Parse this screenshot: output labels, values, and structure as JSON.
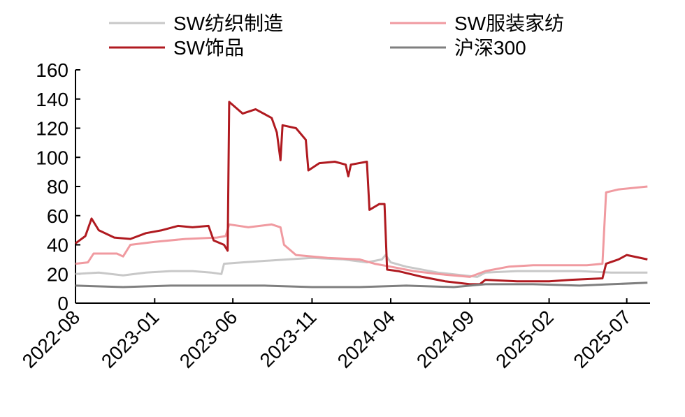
{
  "chart_data": {
    "type": "line",
    "title": "",
    "xlabel": "",
    "ylabel": "",
    "xlim": [
      "2022-08-01",
      "2025-08-15"
    ],
    "ylim": [
      0,
      160
    ],
    "yticks": [
      0,
      20,
      40,
      60,
      80,
      100,
      120,
      140,
      160
    ],
    "xticks": [
      "2022-08",
      "2023-01",
      "2023-06",
      "2023-11",
      "2024-04",
      "2024-09",
      "2025-02",
      "2025-07"
    ],
    "grid": false,
    "legend_position": "top",
    "series": [
      {
        "name": "SW纺织制造",
        "color": "#c8c8c8",
        "points": [
          [
            "2022-08-01",
            20
          ],
          [
            "2022-09-15",
            21
          ],
          [
            "2022-11-01",
            19
          ],
          [
            "2022-12-15",
            21
          ],
          [
            "2023-02-01",
            22
          ],
          [
            "2023-03-15",
            22
          ],
          [
            "2023-04-20",
            21
          ],
          [
            "2023-05-10",
            20
          ],
          [
            "2023-05-15",
            27
          ],
          [
            "2023-06-20",
            28
          ],
          [
            "2023-08-01",
            29
          ],
          [
            "2023-09-15",
            30
          ],
          [
            "2023-11-01",
            31
          ],
          [
            "2024-01-01",
            30
          ],
          [
            "2024-02-15",
            28
          ],
          [
            "2024-03-15",
            30
          ],
          [
            "2024-03-22",
            33
          ],
          [
            "2024-04-01",
            28
          ],
          [
            "2024-05-01",
            25
          ],
          [
            "2024-07-01",
            21
          ],
          [
            "2024-09-15",
            18
          ],
          [
            "2024-10-01",
            21
          ],
          [
            "2024-12-01",
            22
          ],
          [
            "2025-02-01",
            22
          ],
          [
            "2025-04-01",
            22
          ],
          [
            "2025-06-01",
            21
          ],
          [
            "2025-08-10",
            21
          ]
        ]
      },
      {
        "name": "SW服装家纺",
        "color": "#f09aa0",
        "points": [
          [
            "2022-08-01",
            27
          ],
          [
            "2022-08-25",
            28
          ],
          [
            "2022-09-05",
            34
          ],
          [
            "2022-10-20",
            34
          ],
          [
            "2022-11-01",
            32
          ],
          [
            "2022-11-15",
            40
          ],
          [
            "2023-01-01",
            42
          ],
          [
            "2023-03-01",
            44
          ],
          [
            "2023-05-01",
            45
          ],
          [
            "2023-05-18",
            46
          ],
          [
            "2023-05-25",
            54
          ],
          [
            "2023-07-01",
            52
          ],
          [
            "2023-08-15",
            54
          ],
          [
            "2023-09-01",
            52
          ],
          [
            "2023-09-08",
            40
          ],
          [
            "2023-10-01",
            33
          ],
          [
            "2023-12-01",
            31
          ],
          [
            "2024-02-01",
            30
          ],
          [
            "2024-03-01",
            27
          ],
          [
            "2024-04-01",
            25
          ],
          [
            "2024-05-15",
            22
          ],
          [
            "2024-07-01",
            20
          ],
          [
            "2024-09-01",
            18
          ],
          [
            "2024-10-01",
            22
          ],
          [
            "2024-11-15",
            25
          ],
          [
            "2025-01-01",
            26
          ],
          [
            "2025-04-15",
            26
          ],
          [
            "2025-05-15",
            27
          ],
          [
            "2025-05-22",
            76
          ],
          [
            "2025-06-15",
            78
          ],
          [
            "2025-08-10",
            80
          ]
        ]
      },
      {
        "name": "SW饰品",
        "color": "#b01a20",
        "points": [
          [
            "2022-08-01",
            41
          ],
          [
            "2022-08-20",
            46
          ],
          [
            "2022-09-01",
            58
          ],
          [
            "2022-09-15",
            50
          ],
          [
            "2022-10-15",
            45
          ],
          [
            "2022-11-15",
            44
          ],
          [
            "2022-12-15",
            48
          ],
          [
            "2023-01-15",
            50
          ],
          [
            "2023-02-15",
            53
          ],
          [
            "2023-03-15",
            52
          ],
          [
            "2023-04-15",
            53
          ],
          [
            "2023-04-25",
            43
          ],
          [
            "2023-05-15",
            40
          ],
          [
            "2023-05-22",
            36
          ],
          [
            "2023-05-25",
            138
          ],
          [
            "2023-06-20",
            130
          ],
          [
            "2023-07-15",
            133
          ],
          [
            "2023-08-15",
            127
          ],
          [
            "2023-08-25",
            117
          ],
          [
            "2023-09-01",
            98
          ],
          [
            "2023-09-05",
            122
          ],
          [
            "2023-10-01",
            120
          ],
          [
            "2023-10-20",
            112
          ],
          [
            "2023-10-25",
            91
          ],
          [
            "2023-11-15",
            96
          ],
          [
            "2023-12-15",
            97
          ],
          [
            "2024-01-05",
            95
          ],
          [
            "2024-01-10",
            87
          ],
          [
            "2024-01-15",
            95
          ],
          [
            "2024-02-15",
            97
          ],
          [
            "2024-02-20",
            64
          ],
          [
            "2024-03-10",
            68
          ],
          [
            "2024-03-20",
            68
          ],
          [
            "2024-03-25",
            23
          ],
          [
            "2024-04-15",
            22
          ],
          [
            "2024-06-01",
            18
          ],
          [
            "2024-07-15",
            15
          ],
          [
            "2024-09-01",
            13
          ],
          [
            "2024-09-20",
            13
          ],
          [
            "2024-10-01",
            16
          ],
          [
            "2024-12-01",
            15
          ],
          [
            "2025-02-01",
            15
          ],
          [
            "2025-03-15",
            16
          ],
          [
            "2025-05-15",
            17
          ],
          [
            "2025-05-22",
            27
          ],
          [
            "2025-06-15",
            30
          ],
          [
            "2025-07-01",
            33
          ],
          [
            "2025-08-10",
            30
          ]
        ]
      },
      {
        "name": "沪深300",
        "color": "#7f7f7f",
        "points": [
          [
            "2022-08-01",
            12
          ],
          [
            "2022-11-01",
            11
          ],
          [
            "2023-02-01",
            12
          ],
          [
            "2023-05-01",
            12
          ],
          [
            "2023-08-01",
            12
          ],
          [
            "2023-11-01",
            11
          ],
          [
            "2024-02-01",
            11
          ],
          [
            "2024-05-01",
            12
          ],
          [
            "2024-08-01",
            11
          ],
          [
            "2024-10-01",
            13
          ],
          [
            "2025-01-01",
            13
          ],
          [
            "2025-04-01",
            12
          ],
          [
            "2025-06-01",
            13
          ],
          [
            "2025-08-10",
            14
          ]
        ]
      }
    ]
  }
}
